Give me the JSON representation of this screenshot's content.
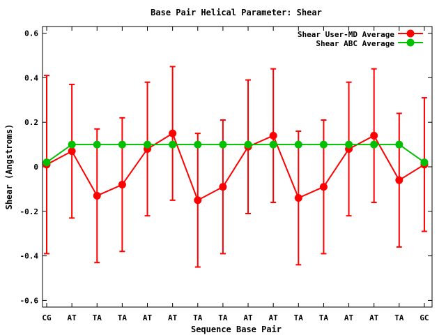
{
  "chart_data": {
    "type": "line",
    "title": "Base Pair Helical Parameter: Shear",
    "xlabel": "Sequence Base Pair",
    "ylabel": "Shear (Angstroms)",
    "categories": [
      "CG",
      "AT",
      "TA",
      "TA",
      "AT",
      "AT",
      "TA",
      "TA",
      "AT",
      "AT",
      "TA",
      "TA",
      "AT",
      "AT",
      "TA",
      "GC"
    ],
    "ylim": [
      -0.63,
      0.63
    ],
    "yticks": [
      -0.6,
      -0.4,
      -0.2,
      0,
      0.2,
      0.4,
      0.6
    ],
    "ytick_labels": [
      "-0.6",
      "-0.4",
      "-0.2",
      "0",
      "0.2",
      "0.4",
      "0.6"
    ],
    "grid": false,
    "legend_position": "top-right",
    "series": [
      {
        "name": "Shear User-MD Average",
        "color": "#ff0000",
        "values": [
          0.01,
          0.07,
          -0.13,
          -0.08,
          0.08,
          0.15,
          -0.15,
          -0.09,
          0.09,
          0.14,
          -0.14,
          -0.09,
          0.08,
          0.14,
          -0.06,
          0.01
        ],
        "error_low": [
          -0.39,
          -0.23,
          -0.43,
          -0.38,
          -0.22,
          -0.15,
          -0.45,
          -0.39,
          -0.21,
          -0.16,
          -0.44,
          -0.39,
          -0.22,
          -0.16,
          -0.36,
          -0.29
        ],
        "error_high": [
          0.41,
          0.37,
          0.17,
          0.22,
          0.38,
          0.45,
          0.15,
          0.21,
          0.39,
          0.44,
          0.16,
          0.21,
          0.38,
          0.44,
          0.24,
          0.31
        ]
      },
      {
        "name": "Shear ABC Average",
        "color": "#00c000",
        "values": [
          0.02,
          0.1,
          0.1,
          0.1,
          0.1,
          0.1,
          0.1,
          0.1,
          0.1,
          0.1,
          0.1,
          0.1,
          0.1,
          0.1,
          0.1,
          0.02
        ]
      }
    ]
  }
}
